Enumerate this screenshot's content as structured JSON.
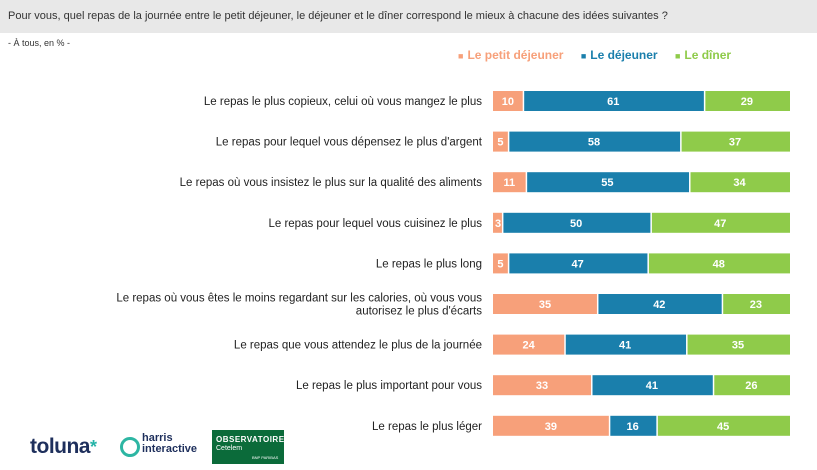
{
  "header": {
    "question": "Pour vous, quel repas de la journée entre le petit déjeuner, le déjeuner et le dîner correspond le mieux à chacune des idées suivantes ?",
    "base": "- À tous, en % -"
  },
  "legend": {
    "marker": "■",
    "items": [
      "Le petit déjeuner",
      "Le déjeuner",
      "Le dîner"
    ]
  },
  "logos": {
    "toluna": "toluna",
    "toluna_star": "*",
    "harris_line1": "harris",
    "harris_line2": "interactive",
    "observatoire": "OBSERVATOIRE",
    "cetelem": "Cetelem",
    "bnp": "BNP PARIBAS"
  },
  "chart_data": {
    "type": "bar",
    "orientation": "horizontal-stacked-100",
    "unit": "%",
    "categories": [
      [
        "Le repas le plus copieux, celui où vous mangez le plus"
      ],
      [
        "Le repas pour lequel vous dépensez le plus d'argent"
      ],
      [
        "Le repas où vous insistez le plus sur la qualité des aliments"
      ],
      [
        "Le repas pour lequel vous cuisinez le plus"
      ],
      [
        "Le repas le plus long"
      ],
      [
        "Le repas où vous êtes le moins regardant sur les calories, où vous vous",
        "autorisez le plus d'écarts"
      ],
      [
        "Le repas que vous attendez le plus de la journée"
      ],
      [
        "Le repas le plus important pour vous"
      ],
      [
        "Le repas le plus léger"
      ]
    ],
    "series": [
      {
        "name": "Le petit déjeuner",
        "color": "#f7a07a",
        "values": [
          10,
          5,
          11,
          3,
          5,
          35,
          24,
          33,
          39
        ]
      },
      {
        "name": "Le déjeuner",
        "color": "#1a7fac",
        "values": [
          61,
          58,
          55,
          50,
          47,
          42,
          41,
          41,
          16
        ]
      },
      {
        "name": "Le dîner",
        "color": "#8fcb4a",
        "values": [
          29,
          37,
          34,
          47,
          48,
          23,
          35,
          26,
          45
        ]
      }
    ],
    "legend_position": "top",
    "grid": false
  }
}
